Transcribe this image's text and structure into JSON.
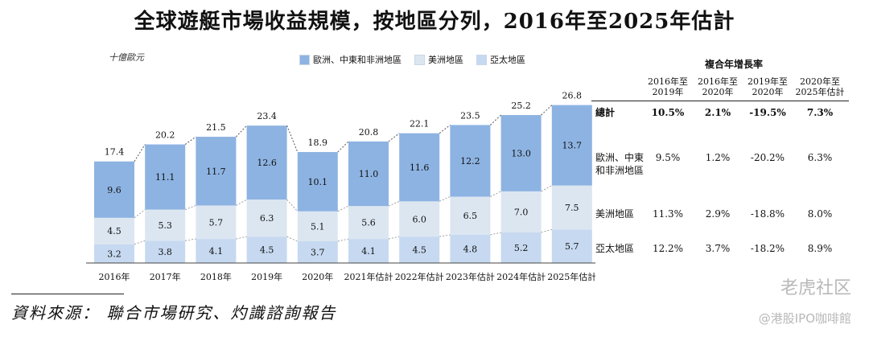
{
  "title": "全球遊艇市場收益規模，按地區分列，2016年至2025年估計",
  "unit_label": "十億歐元",
  "colors": {
    "europe": "#8db3e2",
    "americas": "#dce6f1",
    "asia": "#c6d9f0",
    "line": "#555555"
  },
  "chart_data": {
    "type": "bar",
    "stacked": true,
    "categories": [
      "2016年",
      "2017年",
      "2018年",
      "2019年",
      "2020年",
      "2021年估計",
      "2022年估計",
      "2023年估計",
      "2024年估計",
      "2025年估計"
    ],
    "series": [
      {
        "name": "亞太地區",
        "key": "asia",
        "values": [
          3.2,
          3.8,
          4.1,
          4.5,
          3.7,
          4.1,
          4.5,
          4.8,
          5.2,
          5.7
        ]
      },
      {
        "name": "美洲地區",
        "key": "americas",
        "values": [
          4.5,
          5.3,
          5.7,
          6.3,
          5.1,
          5.6,
          6.0,
          6.5,
          7.0,
          7.5
        ]
      },
      {
        "name": "歐洲、中東和非洲地區",
        "key": "europe",
        "values": [
          9.6,
          11.1,
          11.7,
          12.6,
          10.1,
          11.0,
          11.6,
          12.2,
          13.0,
          13.7
        ]
      }
    ],
    "totals": [
      17.4,
      20.2,
      21.5,
      23.4,
      18.9,
      20.8,
      22.1,
      23.5,
      25.2,
      26.8
    ],
    "ylim": [
      0,
      28
    ],
    "legend": [
      "歐洲、中東和非洲地區",
      "美洲地區",
      "亞太地區"
    ],
    "legend_position": "top"
  },
  "growth_table": {
    "title": "複合年增長率",
    "headers": [
      [
        "2016年至",
        "2019年"
      ],
      [
        "2016年至",
        "2020年"
      ],
      [
        "2019年至",
        "2020年"
      ],
      [
        "2020年至",
        "2025年估計"
      ]
    ],
    "rows": [
      {
        "label": [
          "總計"
        ],
        "bold": true,
        "values": [
          "10.5%",
          "2.1%",
          "-19.5%",
          "7.3%"
        ]
      },
      {
        "label": [
          "歐洲、中東",
          "和非洲地區"
        ],
        "bold": false,
        "values": [
          "9.5%",
          "1.2%",
          "-20.2%",
          "6.3%"
        ]
      },
      {
        "label": [
          "美洲地區"
        ],
        "bold": false,
        "values": [
          "11.3%",
          "2.9%",
          "-18.8%",
          "8.0%"
        ]
      },
      {
        "label": [
          "亞太地區"
        ],
        "bold": false,
        "values": [
          "12.2%",
          "3.7%",
          "-18.2%",
          "8.9%"
        ]
      }
    ]
  },
  "source": "資料來源： 聯合市場研究、灼識諮詢報告",
  "watermarks": [
    "老虎社区",
    "@港股IPO咖啡館"
  ]
}
